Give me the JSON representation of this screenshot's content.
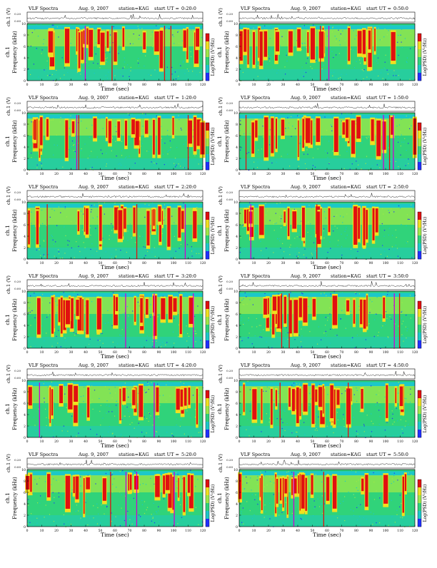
{
  "header": {
    "title": "VLF Spectra",
    "date": "Aug. 9, 2007",
    "station": "station=KAG",
    "start_prefix": "start  UT ="
  },
  "labels": {
    "ch1_axis": "ch.1 (V)",
    "freq_axis": "Frequency (kHz)",
    "ch1_side": "ch.1",
    "time_axis": "Time (sec)",
    "colorbar": "Log(PSD) (V²/Hz)"
  },
  "colors": {
    "background": "#1cc8c8",
    "noise_floor": "#30d37a",
    "low_band": "#9ee84a",
    "bursts": "#e01010",
    "burst_edge": "#f0e020",
    "bright_cols": "#d000d0",
    "saturation": "#2030ff"
  },
  "chart_data": [
    {
      "type": "heatmap",
      "start_ut": "0:20:0",
      "x_ticks": [
        0,
        10,
        20,
        30,
        40,
        50,
        60,
        70,
        80,
        90,
        100,
        110,
        120
      ],
      "y_ticks": [
        0,
        2,
        4,
        6,
        8,
        10
      ],
      "trace_ticks": [
        "0.00",
        "0.20"
      ],
      "xlim": [
        0,
        120
      ],
      "ylim": [
        0,
        10
      ]
    },
    {
      "type": "heatmap",
      "start_ut": "0:50:0",
      "x_ticks": [
        0,
        10,
        20,
        30,
        40,
        50,
        60,
        70,
        80,
        90,
        100,
        110,
        120
      ],
      "y_ticks": [
        0,
        2,
        4,
        6,
        8,
        10
      ],
      "trace_ticks": [
        "0.00",
        "0.20"
      ],
      "xlim": [
        0,
        120
      ],
      "ylim": [
        0,
        10
      ]
    },
    {
      "type": "heatmap",
      "start_ut": "1:20:0",
      "x_ticks": [
        0,
        10,
        20,
        30,
        40,
        50,
        60,
        70,
        80,
        90,
        100,
        110,
        120
      ],
      "y_ticks": [
        0,
        2,
        4,
        6,
        8,
        10
      ],
      "trace_ticks": [
        "0.00",
        "0.20"
      ],
      "xlim": [
        0,
        120
      ],
      "ylim": [
        0,
        10
      ]
    },
    {
      "type": "heatmap",
      "start_ut": "1:50:0",
      "x_ticks": [
        0,
        10,
        20,
        30,
        40,
        50,
        60,
        70,
        80,
        90,
        100,
        110,
        120
      ],
      "y_ticks": [
        0,
        2,
        4,
        6,
        8,
        10
      ],
      "trace_ticks": [
        "0.00",
        "0.20"
      ],
      "xlim": [
        0,
        120
      ],
      "ylim": [
        0,
        10
      ]
    },
    {
      "type": "heatmap",
      "start_ut": "2:20:0",
      "x_ticks": [
        0,
        10,
        20,
        30,
        40,
        50,
        60,
        70,
        80,
        90,
        100,
        110,
        120
      ],
      "y_ticks": [
        0,
        2,
        4,
        6,
        8,
        10
      ],
      "trace_ticks": [
        "0.00",
        "0.20"
      ],
      "xlim": [
        0,
        120
      ],
      "ylim": [
        0,
        10
      ]
    },
    {
      "type": "heatmap",
      "start_ut": "2:50:0",
      "x_ticks": [
        0,
        10,
        20,
        30,
        40,
        50,
        60,
        70,
        80,
        90,
        100,
        110,
        120
      ],
      "y_ticks": [
        0,
        2,
        4,
        6,
        8,
        10
      ],
      "trace_ticks": [
        "0.00",
        "0.20"
      ],
      "xlim": [
        0,
        120
      ],
      "ylim": [
        0,
        10
      ]
    },
    {
      "type": "heatmap",
      "start_ut": "3:20:0",
      "x_ticks": [
        0,
        10,
        20,
        30,
        40,
        50,
        60,
        70,
        80,
        90,
        100,
        110,
        120
      ],
      "y_ticks": [
        0,
        2,
        4,
        6,
        8,
        10
      ],
      "trace_ticks": [
        "0.00",
        "0.20"
      ],
      "xlim": [
        0,
        120
      ],
      "ylim": [
        0,
        10
      ]
    },
    {
      "type": "heatmap",
      "start_ut": "3:50:0",
      "x_ticks": [
        0,
        10,
        20,
        30,
        40,
        50,
        60,
        70,
        80,
        90,
        100,
        110,
        120
      ],
      "y_ticks": [
        0,
        2,
        4,
        6,
        8,
        10
      ],
      "trace_ticks": [
        "0.00",
        "0.20"
      ],
      "xlim": [
        0,
        120
      ],
      "ylim": [
        0,
        10
      ]
    },
    {
      "type": "heatmap",
      "start_ut": "4:20:0",
      "x_ticks": [
        0,
        10,
        20,
        30,
        40,
        50,
        60,
        70,
        80,
        90,
        100,
        110,
        120
      ],
      "y_ticks": [
        0,
        2,
        4,
        6,
        8,
        10
      ],
      "trace_ticks": [
        "0.00",
        "0.20"
      ],
      "xlim": [
        0,
        120
      ],
      "ylim": [
        0,
        10
      ]
    },
    {
      "type": "heatmap",
      "start_ut": "4:50:0",
      "x_ticks": [
        0,
        10,
        20,
        30,
        40,
        50,
        60,
        70,
        80,
        90,
        100,
        110,
        120
      ],
      "y_ticks": [
        0,
        2,
        4,
        6,
        8,
        10
      ],
      "trace_ticks": [
        "0.00",
        "0.20"
      ],
      "xlim": [
        0,
        120
      ],
      "ylim": [
        0,
        10
      ]
    },
    {
      "type": "heatmap",
      "start_ut": "5:20:0",
      "x_ticks": [
        0,
        10,
        20,
        30,
        40,
        50,
        60,
        70,
        80,
        90,
        100,
        110,
        120
      ],
      "y_ticks": [
        0,
        2,
        4,
        6,
        8,
        10
      ],
      "trace_ticks": [
        "0.00",
        "0.20"
      ],
      "xlim": [
        0,
        120
      ],
      "ylim": [
        0,
        10
      ]
    },
    {
      "type": "heatmap",
      "start_ut": "5:50:0",
      "x_ticks": [
        0,
        10,
        20,
        30,
        40,
        50,
        60,
        70,
        80,
        90,
        100,
        110,
        120
      ],
      "y_ticks": [
        0,
        2,
        4,
        6,
        8,
        10
      ],
      "trace_ticks": [
        "0.00",
        "0.20"
      ],
      "xlim": [
        0,
        120
      ],
      "ylim": [
        0,
        10
      ]
    }
  ]
}
